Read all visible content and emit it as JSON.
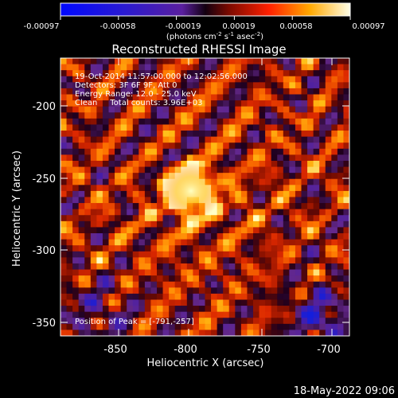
{
  "colorbar": {
    "tick_labels": [
      "-0.00097",
      "-0.00058",
      "-0.00019",
      "0.00019",
      "0.00058",
      "0.00097"
    ],
    "units_main": "(photons cm",
    "units_exp1": "-2",
    "units_mid": " s",
    "units_exp2": "-1",
    "units_mid2": " asec",
    "units_exp3": "-2",
    "units_end": ")"
  },
  "plot": {
    "title": "Reconstructed RHESSI Image",
    "annotations": [
      "19-Oct-2014 11:57:00.000 to 12:02:56.000",
      "Detectors: 3F 6F 9F, Att 0",
      "Energy Range: 12.0 - 25.0 keV",
      "Clean     Total counts: 3.96E+03"
    ],
    "peak_label": "Position of Peak = [-791,-257]",
    "xlabel": "Heliocentric X (arcsec)",
    "ylabel": "Heliocentric Y (arcsec)",
    "xticks": [
      "-850",
      "-800",
      "-750",
      "-700"
    ],
    "yticks": [
      "-200",
      "-250",
      "-300",
      "-350"
    ]
  },
  "footer": {
    "timestamp": "18-May-2022 09:06"
  },
  "chart_data": {
    "type": "heatmap",
    "title": "Reconstructed RHESSI Image",
    "xlabel": "Heliocentric X (arcsec)",
    "ylabel": "Heliocentric Y (arcsec)",
    "xlim": [
      -890,
      -695
    ],
    "ylim": [
      -365,
      -175
    ],
    "x_ticks": [
      -850,
      -800,
      -750,
      -700
    ],
    "y_ticks": [
      -200,
      -250,
      -300,
      -350
    ],
    "colorbar_range": [
      -0.00097,
      0.00097
    ],
    "colorbar_ticks": [
      -0.00097,
      -0.00058,
      -0.00019,
      0.00019,
      0.00058,
      0.00097
    ],
    "peak_position": [
      -791,
      -257
    ],
    "colormap": [
      "#0000ff",
      "#4a1aa8",
      "#7a2f8c",
      "#000000",
      "#b21300",
      "#ff5000",
      "#ffb400",
      "#ffffd0"
    ]
  }
}
